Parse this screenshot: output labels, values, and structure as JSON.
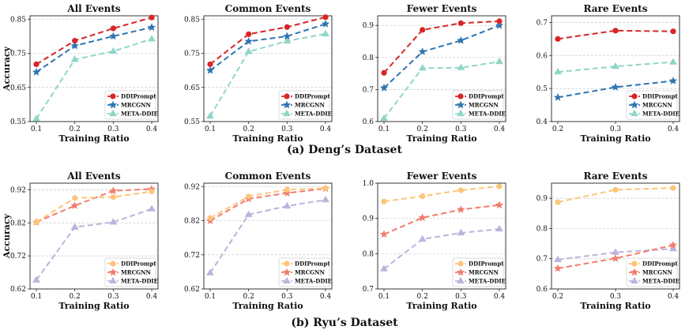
{
  "captions": [
    "(a) Deng’s Dataset",
    "(b) Ryu’s Dataset"
  ],
  "palettes": {
    "deng": {
      "DDIPrompt": "#d62728",
      "MRCGNN": "#2f75b0",
      "META-DDIE": "#8fd6c8"
    },
    "ryu": {
      "DDIPrompt": "#fdc57a",
      "MRCGNN": "#f07c6e",
      "META-DDIE": "#bdb3dc"
    }
  },
  "chart_data": [
    {
      "type": "line",
      "dataset": "deng",
      "title": "All Events",
      "xlabel": "Training Ratio",
      "ylabel": "Accuracy",
      "categories": [
        "0.1",
        "0.2",
        "0.3",
        "0.4"
      ],
      "ylim": [
        0.55,
        0.86
      ],
      "yticks": [
        "0.55",
        "0.65",
        "0.75",
        "0.85"
      ],
      "series": [
        {
          "name": "DDIPrompt",
          "values": [
            0.718,
            0.787,
            0.823,
            0.855
          ]
        },
        {
          "name": "MRCGNN",
          "values": [
            0.695,
            0.772,
            0.8,
            0.826
          ]
        },
        {
          "name": "META-DDIE",
          "values": [
            0.558,
            0.732,
            0.756,
            0.792
          ]
        }
      ]
    },
    {
      "type": "line",
      "dataset": "deng",
      "title": "Common Events",
      "xlabel": "Training Ratio",
      "ylabel": "",
      "categories": [
        "0.1",
        "0.2",
        "0.3",
        "0.4"
      ],
      "ylim": [
        0.55,
        0.86
      ],
      "yticks": [
        "0.55",
        "0.65",
        "0.75",
        "0.85"
      ],
      "series": [
        {
          "name": "DDIPrompt",
          "values": [
            0.718,
            0.806,
            0.827,
            0.856
          ]
        },
        {
          "name": "MRCGNN",
          "values": [
            0.7,
            0.785,
            0.8,
            0.836
          ]
        },
        {
          "name": "META-DDIE",
          "values": [
            0.566,
            0.755,
            0.786,
            0.807
          ]
        }
      ]
    },
    {
      "type": "line",
      "dataset": "deng",
      "title": "Fewer Events",
      "xlabel": "Training Ratio",
      "ylabel": "",
      "categories": [
        "0.1",
        "0.2",
        "0.3",
        "0.4"
      ],
      "ylim": [
        0.6,
        0.93
      ],
      "yticks": [
        "0.6",
        "0.7",
        "0.8",
        "0.9"
      ],
      "series": [
        {
          "name": "DDIPrompt",
          "values": [
            0.752,
            0.886,
            0.907,
            0.913
          ]
        },
        {
          "name": "MRCGNN",
          "values": [
            0.705,
            0.818,
            0.853,
            0.9
          ]
        },
        {
          "name": "META-DDIE",
          "values": [
            0.61,
            0.767,
            0.768,
            0.787
          ]
        }
      ]
    },
    {
      "type": "line",
      "dataset": "deng",
      "title": "Rare Events",
      "xlabel": "Training Ratio",
      "ylabel": "",
      "categories": [
        "0.2",
        "0.3",
        "0.4"
      ],
      "ylim": [
        0.4,
        0.72
      ],
      "yticks": [
        "0.4",
        "0.5",
        "0.6",
        "0.7"
      ],
      "series": [
        {
          "name": "DDIPrompt",
          "values": [
            0.65,
            0.675,
            0.673
          ]
        },
        {
          "name": "MRCGNN",
          "values": [
            0.473,
            0.504,
            0.523
          ]
        },
        {
          "name": "META-DDIE",
          "values": [
            0.55,
            0.567,
            0.58
          ]
        }
      ]
    },
    {
      "type": "line",
      "dataset": "ryu",
      "title": "All Events",
      "xlabel": "Training Ratio",
      "ylabel": "Accuracy",
      "categories": [
        "0.1",
        "0.2",
        "0.3",
        "0.4"
      ],
      "ylim": [
        0.62,
        0.94
      ],
      "yticks": [
        "0.62",
        "0.72",
        "0.82",
        "0.92"
      ],
      "series": [
        {
          "name": "DDIPrompt",
          "values": [
            0.822,
            0.895,
            0.898,
            0.915
          ]
        },
        {
          "name": "MRCGNN",
          "values": [
            0.822,
            0.872,
            0.917,
            0.922
          ]
        },
        {
          "name": "META-DDIE",
          "values": [
            0.647,
            0.807,
            0.822,
            0.862
          ]
        }
      ]
    },
    {
      "type": "line",
      "dataset": "ryu",
      "title": "Common Events",
      "xlabel": "Training Ratio",
      "ylabel": "",
      "categories": [
        "0.1",
        "0.2",
        "0.3",
        "0.4"
      ],
      "ylim": [
        0.62,
        0.93
      ],
      "yticks": [
        "0.62",
        "0.72",
        "0.82",
        "0.92"
      ],
      "series": [
        {
          "name": "DDIPrompt",
          "values": [
            0.828,
            0.891,
            0.911,
            0.915
          ]
        },
        {
          "name": "MRCGNN",
          "values": [
            0.82,
            0.884,
            0.901,
            0.914
          ]
        },
        {
          "name": "META-DDIE",
          "values": [
            0.667,
            0.838,
            0.863,
            0.881
          ]
        }
      ]
    },
    {
      "type": "line",
      "dataset": "ryu",
      "title": "Fewer Events",
      "xlabel": "Training Ratio",
      "ylabel": "",
      "categories": [
        "0.1",
        "0.2",
        "0.3",
        "0.4"
      ],
      "ylim": [
        0.7,
        1.0
      ],
      "yticks": [
        "0.7",
        "0.8",
        "0.9",
        "1.0"
      ],
      "series": [
        {
          "name": "DDIPrompt",
          "values": [
            0.948,
            0.963,
            0.98,
            0.991
          ]
        },
        {
          "name": "MRCGNN",
          "values": [
            0.855,
            0.902,
            0.925,
            0.938
          ]
        },
        {
          "name": "META-DDIE",
          "values": [
            0.757,
            0.841,
            0.859,
            0.87
          ]
        }
      ]
    },
    {
      "type": "line",
      "dataset": "ryu",
      "title": "Rare Events",
      "xlabel": "Training Ratio",
      "ylabel": "",
      "categories": [
        "0.2",
        "0.3",
        "0.4"
      ],
      "ylim": [
        0.6,
        0.95
      ],
      "yticks": [
        "0.6",
        "0.7",
        "0.8",
        "0.9"
      ],
      "series": [
        {
          "name": "DDIPrompt",
          "values": [
            0.887,
            0.928,
            0.934
          ]
        },
        {
          "name": "MRCGNN",
          "values": [
            0.668,
            0.701,
            0.745
          ]
        },
        {
          "name": "META-DDIE",
          "values": [
            0.697,
            0.721,
            0.733
          ]
        }
      ]
    }
  ]
}
